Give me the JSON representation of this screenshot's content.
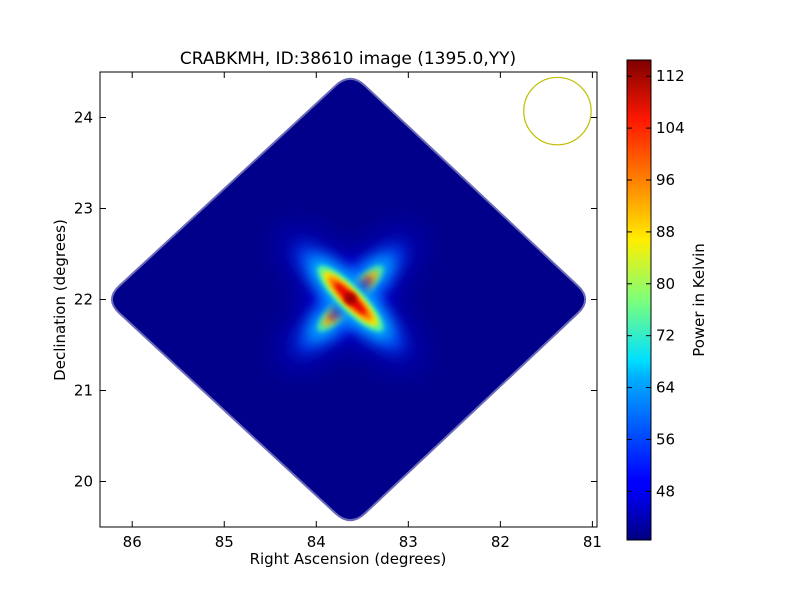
{
  "chart_data": {
    "type": "heatmap",
    "title": "CRABKMH, ID:38610 image (1395.0,YY)",
    "xlabel": "Right Ascension (degrees)",
    "ylabel": "Declination (degrees)",
    "xlim": [
      86.35,
      80.95
    ],
    "ylim": [
      19.5,
      24.5
    ],
    "xticks": [
      86,
      85,
      84,
      83,
      82,
      81
    ],
    "xtick_labels": [
      "86",
      "85",
      "84",
      "83",
      "82",
      "81"
    ],
    "yticks": [
      20,
      21,
      22,
      23,
      24
    ],
    "ytick_labels": [
      "20",
      "21",
      "22",
      "23",
      "24"
    ],
    "colorbar": {
      "label": "Power in Kelvin",
      "colormap": "jet",
      "range": [
        40.5,
        114.5
      ],
      "ticks": [
        48,
        56,
        64,
        72,
        80,
        88,
        96,
        104,
        112
      ],
      "tick_labels": [
        "48",
        "56",
        "64",
        "72",
        "80",
        "88",
        "96",
        "104",
        "112"
      ]
    },
    "map": {
      "background_power": 42,
      "peak_power": 114,
      "source_center": {
        "ra": 83.63,
        "dec": 22.01
      },
      "coverage_outline": [
        {
          "ra": 83.63,
          "dec": 24.5
        },
        {
          "ra": 81.0,
          "dec": 22.0
        },
        {
          "ra": 83.63,
          "dec": 19.5
        },
        {
          "ra": 86.3,
          "dec": 22.0
        }
      ]
    },
    "beam_marker": {
      "ra": 81.38,
      "dec": 24.07,
      "radius_deg": 0.37,
      "color": "#bfbf00"
    },
    "grid": false,
    "legend": "none"
  }
}
